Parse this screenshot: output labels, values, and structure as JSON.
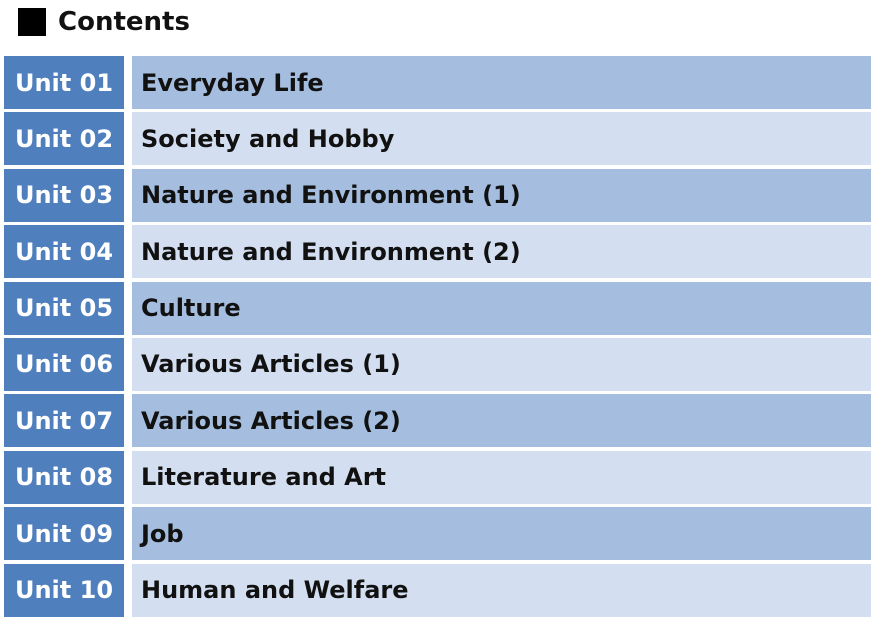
{
  "header": {
    "title": "Contents"
  },
  "table": {
    "rows": [
      [
        "Unit 01",
        "Everyday Life"
      ],
      [
        "Unit 02",
        "Society and Hobby"
      ],
      [
        "Unit 03",
        "Nature and Environment (1)"
      ],
      [
        "Unit 04",
        "Nature and Environment (2)"
      ],
      [
        "Unit 05",
        "Culture"
      ],
      [
        "Unit 06",
        "Various Articles (1)"
      ],
      [
        "Unit 07",
        "Various Articles (2)"
      ],
      [
        "Unit 08",
        "Literature and Art"
      ],
      [
        "Unit 09",
        "Job"
      ],
      [
        "Unit 10",
        "Human and Welfare"
      ]
    ]
  }
}
